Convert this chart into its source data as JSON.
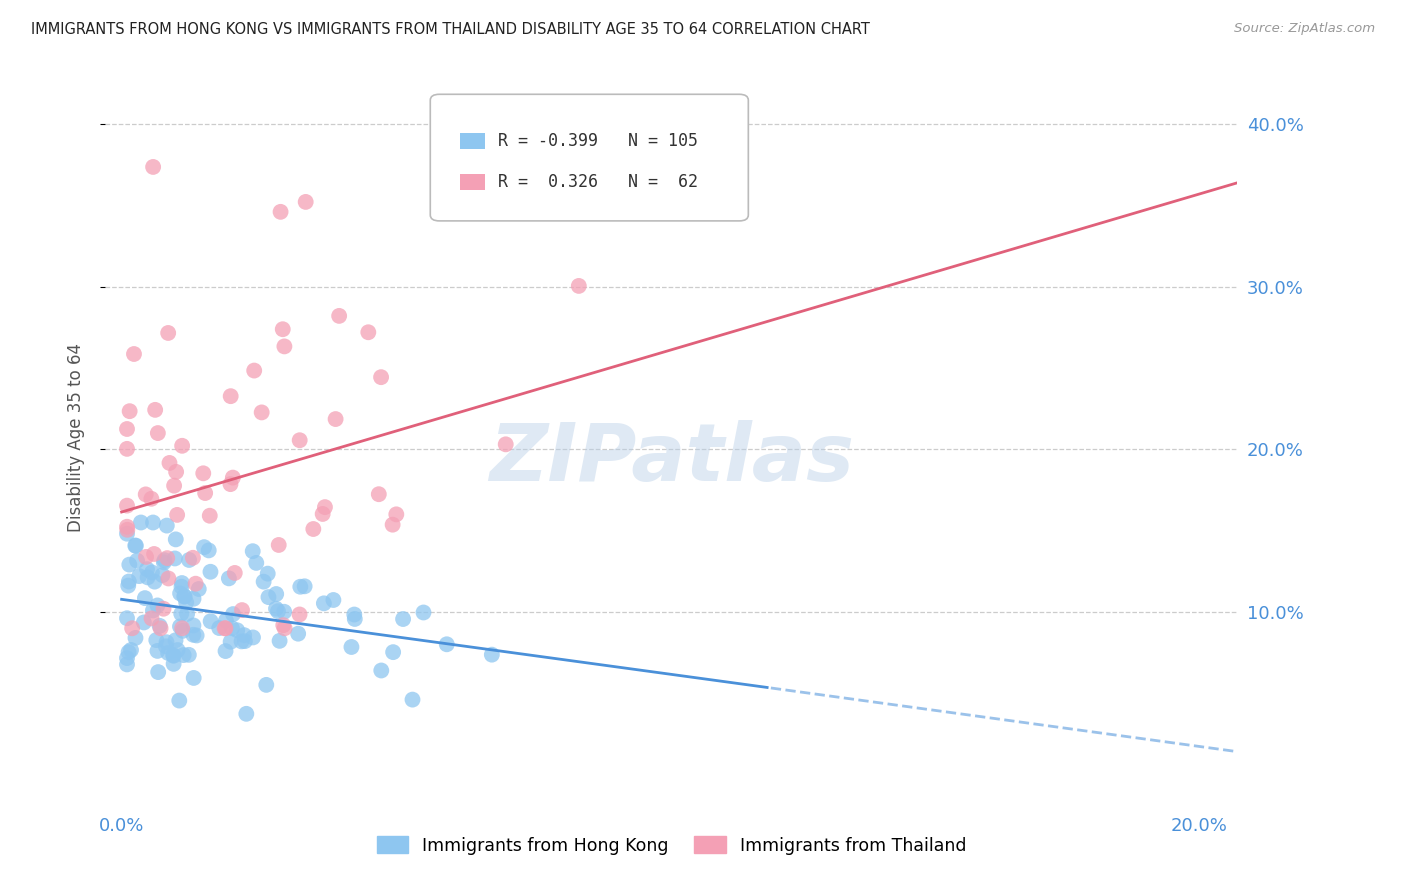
{
  "title": "IMMIGRANTS FROM HONG KONG VS IMMIGRANTS FROM THAILAND DISABILITY AGE 35 TO 64 CORRELATION CHART",
  "source": "Source: ZipAtlas.com",
  "ylabel": "Disability Age 35 to 64",
  "ytick_labels_right": [
    "10.0%",
    "20.0%",
    "30.0%",
    "40.0%"
  ],
  "yticks_right": [
    0.1,
    0.2,
    0.3,
    0.4
  ],
  "xtick_labels": [
    "0.0%",
    "",
    "",
    "",
    "20.0%"
  ],
  "xticks": [
    0.0,
    0.05,
    0.1,
    0.15,
    0.2
  ],
  "xlim": [
    -0.003,
    0.207
  ],
  "ylim": [
    -0.02,
    0.435
  ],
  "series1_name": "Immigrants from Hong Kong",
  "series1_color": "#8ec6f0",
  "series1_line_color": "#4a90d9",
  "series1_R": -0.399,
  "series1_N": 105,
  "series2_name": "Immigrants from Thailand",
  "series2_color": "#f4a0b5",
  "series2_line_color": "#e0607a",
  "series2_R": 0.326,
  "series2_N": 62,
  "watermark": "ZIPatlas",
  "background_color": "#ffffff",
  "title_color": "#222222",
  "axis_label_color": "#555555",
  "tick_color_right": "#4a90d9",
  "tick_color_bottom": "#4a90d9",
  "grid_color": "#cccccc",
  "grid_style": "--"
}
